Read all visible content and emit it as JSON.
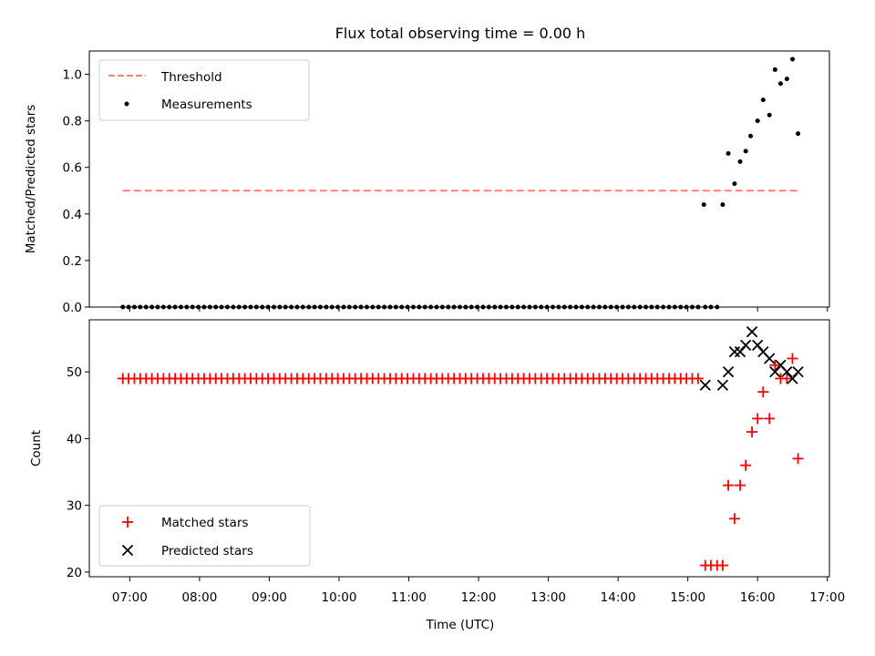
{
  "chart_data": {
    "title": "Flux total observing time = 0.00 h",
    "x_axis": {
      "label": "Time (UTC)",
      "ticks": [
        "07:00",
        "08:00",
        "09:00",
        "10:00",
        "11:00",
        "12:00",
        "13:00",
        "14:00",
        "15:00",
        "16:00",
        "17:00"
      ],
      "tick_values_h": [
        7,
        8,
        9,
        10,
        11,
        12,
        13,
        14,
        15,
        16,
        17
      ],
      "range_h": [
        6.42,
        17.03
      ]
    },
    "panels": [
      {
        "type": "scatter",
        "ylabel": "Matched/Predicted stars",
        "ylim": [
          0.0,
          1.1
        ],
        "yticks": [
          "0.0",
          "0.2",
          "0.4",
          "0.6",
          "0.8",
          "1.0"
        ],
        "ytick_values": [
          0.0,
          0.2,
          0.4,
          0.6,
          0.8,
          1.0
        ],
        "legend_position": "upper-left",
        "series": [
          {
            "name": "Threshold",
            "kind": "dashed-line",
            "color": "#ff7f7f",
            "x_h": [
              6.9,
              16.58
            ],
            "y": [
              0.5,
              0.5
            ]
          },
          {
            "name": "Measurements",
            "kind": "dots",
            "color": "#000000",
            "zero_run": {
              "start_h": 6.9,
              "end_h": 15.17,
              "step_h": 0.0833,
              "y": 0.0
            },
            "points": [
              [
                15.25,
                0.0
              ],
              [
                15.33,
                0.0
              ],
              [
                15.42,
                0.0
              ],
              [
                15.23,
                0.44
              ],
              [
                15.5,
                0.44
              ],
              [
                15.58,
                0.66
              ],
              [
                15.67,
                0.53
              ],
              [
                15.75,
                0.625
              ],
              [
                15.83,
                0.67
              ],
              [
                15.9,
                0.735
              ],
              [
                16.0,
                0.8
              ],
              [
                16.08,
                0.89
              ],
              [
                16.17,
                0.825
              ],
              [
                16.25,
                1.02
              ],
              [
                16.33,
                0.96
              ],
              [
                16.42,
                0.98
              ],
              [
                16.5,
                1.065
              ],
              [
                16.58,
                0.745
              ]
            ]
          }
        ]
      },
      {
        "type": "scatter",
        "ylabel": "Count",
        "ylim": [
          19.3,
          57.8
        ],
        "yticks": [
          "20",
          "30",
          "40",
          "50"
        ],
        "ytick_values": [
          20,
          30,
          40,
          50
        ],
        "legend_position": "lower-left",
        "series": [
          {
            "name": "Matched stars",
            "marker": "plus",
            "color": "#ff0000",
            "constant_run": {
              "start_h": 6.9,
              "end_h": 15.17,
              "step_h": 0.0833,
              "y": 49
            },
            "points": [
              [
                15.25,
                21
              ],
              [
                15.33,
                21
              ],
              [
                15.42,
                21
              ],
              [
                15.5,
                21
              ],
              [
                15.58,
                33
              ],
              [
                15.67,
                28
              ],
              [
                15.75,
                33
              ],
              [
                15.83,
                36
              ],
              [
                15.92,
                41
              ],
              [
                16.0,
                43
              ],
              [
                16.08,
                47
              ],
              [
                16.17,
                43
              ],
              [
                16.25,
                51
              ],
              [
                16.33,
                49
              ],
              [
                16.42,
                49
              ],
              [
                16.5,
                52
              ],
              [
                16.58,
                37
              ]
            ]
          },
          {
            "name": "Predicted stars",
            "marker": "x",
            "color": "#000000",
            "points": [
              [
                15.25,
                48
              ],
              [
                15.5,
                48
              ],
              [
                15.58,
                50
              ],
              [
                15.67,
                53
              ],
              [
                15.75,
                53
              ],
              [
                15.83,
                54
              ],
              [
                15.92,
                56
              ],
              [
                16.0,
                54
              ],
              [
                16.08,
                53
              ],
              [
                16.17,
                52
              ],
              [
                16.25,
                50
              ],
              [
                16.33,
                51
              ],
              [
                16.42,
                50
              ],
              [
                16.5,
                49
              ],
              [
                16.58,
                50
              ]
            ]
          }
        ]
      }
    ]
  }
}
